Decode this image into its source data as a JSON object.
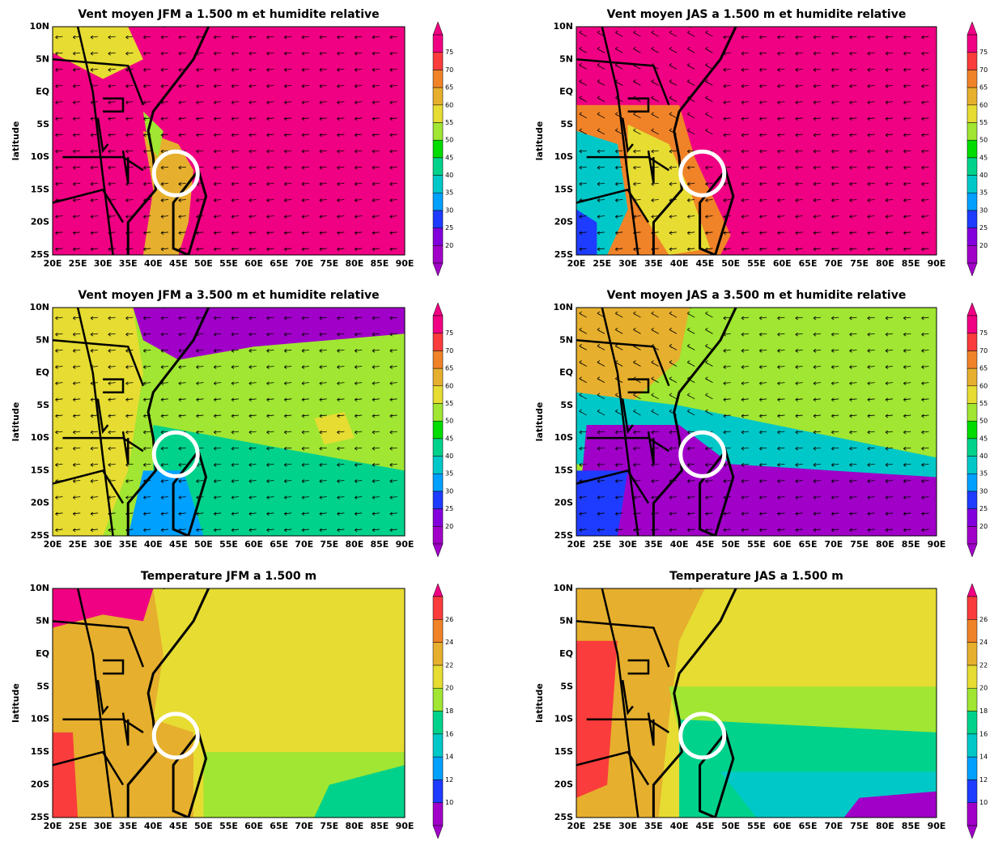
{
  "panels": [
    {
      "title": "Vent moyen JFM a 1.500 m et humidite relative"
    },
    {
      "title": "Vent moyen JAS a 1.500 m et humidite relative"
    },
    {
      "title": "Vent moyen JFM a 3.500 m et humidite relative"
    },
    {
      "title": "Vent moyen JAS a 3.500 m et humidite relative"
    },
    {
      "title": "Temperature JFM a 1.500 m"
    },
    {
      "title": "Temperature JAS a 1.500 m"
    }
  ],
  "y_axis_label": "latitude",
  "lat_labels": [
    "10N",
    "5N",
    "EQ",
    "5S",
    "10S",
    "15S",
    "20S",
    "25S"
  ],
  "lon_labels": [
    "20E",
    "25E",
    "30E",
    "35E",
    "40E",
    "45E",
    "50E",
    "55E",
    "60E",
    "65E",
    "70E",
    "75E",
    "80E",
    "85E",
    "90E"
  ],
  "colorbar_humidity": [
    20,
    25,
    30,
    35,
    40,
    45,
    50,
    55,
    60,
    65,
    70,
    75
  ],
  "colorbar_temperature": [
    10,
    12,
    14,
    16,
    18,
    20,
    22,
    24,
    26
  ]
}
